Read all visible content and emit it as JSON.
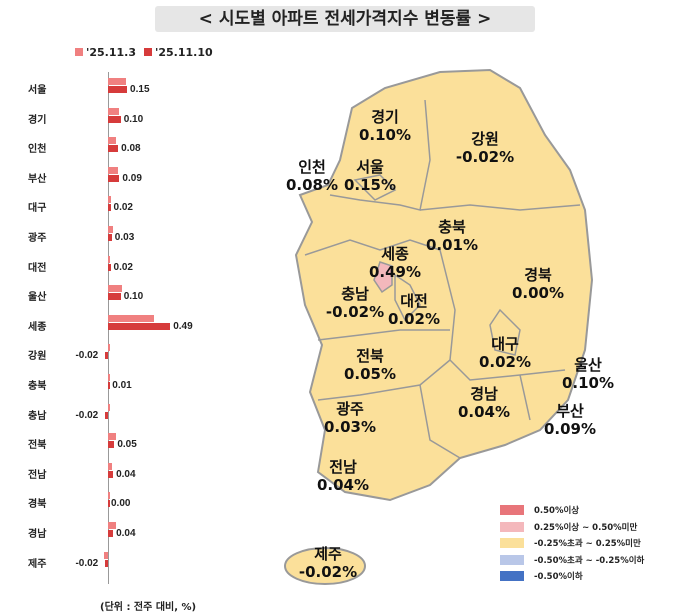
{
  "title": "< 시도별 아파트 전세가격지수 변동률 >",
  "bar_chart": {
    "legend": [
      "'25.11.3",
      "'25.11.10"
    ],
    "colors": [
      "#F08080",
      "#D63B3B"
    ],
    "unit_note": "(단위 : 전주 대비, %)",
    "regions": [
      "서울",
      "경기",
      "인천",
      "부산",
      "대구",
      "광주",
      "대전",
      "울산",
      "세종",
      "강원",
      "충북",
      "충남",
      "전북",
      "전남",
      "경북",
      "경남",
      "제주"
    ],
    "previous": [
      0.14,
      0.09,
      0.06,
      0.08,
      0.02,
      0.04,
      0.01,
      0.11,
      0.36,
      0.0,
      0.01,
      0.0,
      0.06,
      0.03,
      0.0,
      0.06,
      -0.03
    ],
    "current": [
      0.15,
      0.1,
      0.08,
      0.09,
      0.02,
      0.03,
      0.02,
      0.1,
      0.49,
      -0.02,
      0.01,
      -0.02,
      0.05,
      0.04,
      0.0,
      0.04,
      -0.02
    ],
    "current_labels": [
      "0.15",
      "0.10",
      "0.08",
      "0.09",
      "0.02",
      "0.03",
      "0.02",
      "0.10",
      "0.49",
      "-0.02",
      "0.01",
      "-0.02",
      "0.05",
      "0.04",
      "0.00",
      "0.04",
      "-0.02"
    ]
  },
  "map": {
    "labels": [
      {
        "name": "경기",
        "value": "0.10%"
      },
      {
        "name": "강원",
        "value": "-0.02%"
      },
      {
        "name": "인천",
        "value": "0.08%"
      },
      {
        "name": "서울",
        "value": "0.15%"
      },
      {
        "name": "충북",
        "value": "0.01%"
      },
      {
        "name": "세종",
        "value": "0.49%"
      },
      {
        "name": "경북",
        "value": "0.00%"
      },
      {
        "name": "충남",
        "value": "-0.02%"
      },
      {
        "name": "대전",
        "value": "0.02%"
      },
      {
        "name": "대구",
        "value": "0.02%"
      },
      {
        "name": "전북",
        "value": "0.05%"
      },
      {
        "name": "울산",
        "value": "0.10%"
      },
      {
        "name": "광주",
        "value": "0.03%"
      },
      {
        "name": "경남",
        "value": "0.04%"
      },
      {
        "name": "부산",
        "value": "0.09%"
      },
      {
        "name": "전남",
        "value": "0.04%"
      },
      {
        "name": "제주",
        "value": "-0.02%"
      }
    ],
    "legend": [
      {
        "label": "0.50%이상",
        "color": "#E8757A"
      },
      {
        "label": "0.25%이상 ~ 0.50%미만",
        "color": "#F4B8BC"
      },
      {
        "label": "-0.25%초과 ~ 0.25%미만",
        "color": "#FBE09A"
      },
      {
        "label": "-0.50%초과 ~ -0.25%이하",
        "color": "#B9C7E8"
      },
      {
        "label": "-0.50%이하",
        "color": "#4472C4"
      }
    ]
  }
}
